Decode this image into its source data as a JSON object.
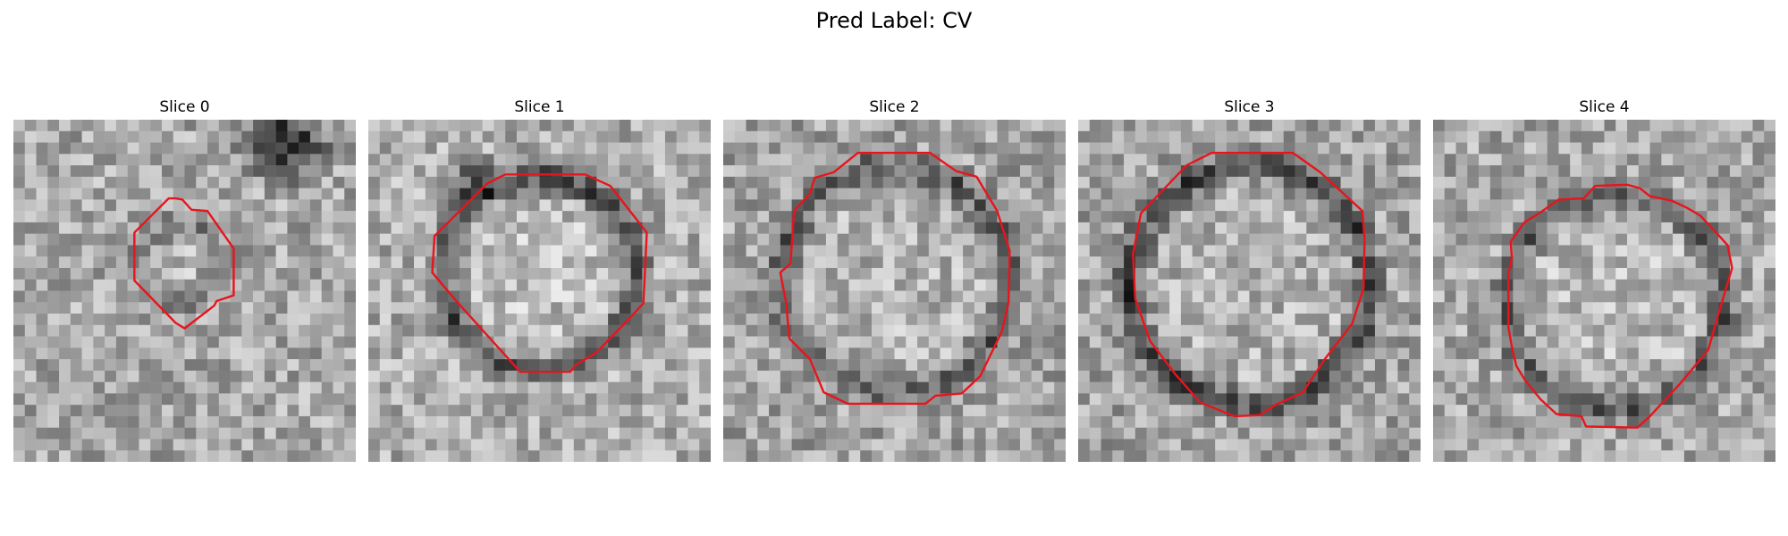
{
  "figure": {
    "title": "Pred Label: CV"
  },
  "panels": [
    {
      "title": "Slice 0"
    },
    {
      "title": "Slice 1"
    },
    {
      "title": "Slice 2"
    },
    {
      "title": "Slice 3"
    },
    {
      "title": "Slice 4"
    }
  ],
  "colors": {
    "contour": "#e8141c",
    "colormap": "grayscale"
  }
}
